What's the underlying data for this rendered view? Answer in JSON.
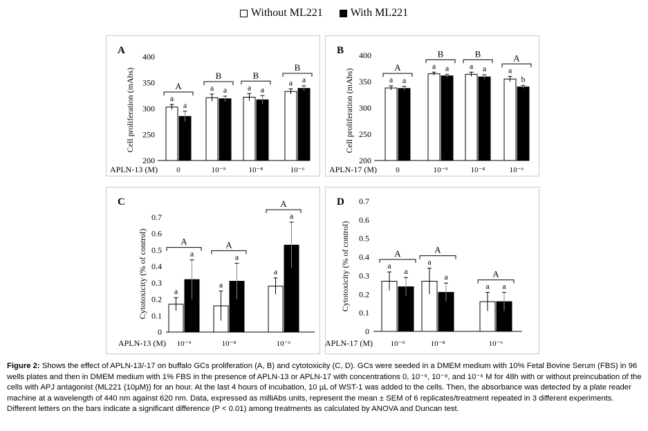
{
  "legend": {
    "without_label": "Without ML221",
    "with_label": "With ML221"
  },
  "colors": {
    "without": "#ffffff",
    "with": "#000000",
    "frame": "#c8c8c8"
  },
  "caption": {
    "label": "Figure 2:",
    "text": " Shows the effect of APLN-13/-17 on buffalo GCs proliferation (A, B) and cytotoxicity (C, D). GCs were seeded in a DMEM medium with 10% Fetal Bovine Serum (FBS) in 96 wells plates and then in DMEM medium with 1% FBS in the presence of APLN-13 or APLN-17 with concentrations 0, 10⁻⁹, 10⁻⁸, and 10⁻⁶ M for 48h with or without preincubation of the cells with APJ antagonist (ML221 (10µM)) for an hour. At the last 4 hours of incubation, 10 µL of WST-1 was added to the cells. Then, the absorbance was detected by a plate reader machine at a wavelength of 440 nm against 620 nm. Data, expressed as milliAbs units, represent the mean ± SEM of 6 replicates/treatment repeated in 3 different experiments. Different letters on the bars indicate a significant difference (P < 0.01) among treatments as calculated by ANOVA and Duncan test."
  },
  "chart_data": [
    {
      "panel": "A",
      "type": "bar",
      "ylabel": "Cell proliferation (mAbs)",
      "ylim": [
        200,
        400
      ],
      "yticks": [
        "400",
        "350",
        "300",
        "250",
        "200"
      ],
      "xlabel": "APLN-13 (M)",
      "categories": [
        "0",
        "10⁻⁹",
        "10⁻⁸",
        "10⁻⁶"
      ],
      "series": [
        {
          "values": [
            303,
            321,
            322,
            333
          ],
          "errors": [
            5,
            7,
            7,
            5
          ],
          "letters": [
            "a",
            "a",
            "a",
            "a"
          ]
        },
        {
          "values": [
            285,
            319,
            317,
            339
          ],
          "errors": [
            10,
            5,
            8,
            5
          ],
          "letters": [
            "a",
            "a",
            "a",
            "a"
          ]
        }
      ],
      "group_letters": [
        "A",
        "B",
        "B",
        "B"
      ]
    },
    {
      "panel": "B",
      "type": "bar",
      "ylabel": "Cell proliferation (mAbs)",
      "ylim": [
        200,
        400
      ],
      "yticks": [
        "400",
        "350",
        "300",
        "250",
        "200"
      ],
      "xlabel": "APLN-17 (M)",
      "categories": [
        "0",
        "10⁻⁹",
        "10⁻⁸",
        "10⁻⁶"
      ],
      "series": [
        {
          "values": [
            338,
            365,
            364,
            355
          ],
          "errors": [
            4,
            3,
            4,
            5
          ],
          "letters": [
            "a",
            "a",
            "a",
            "a"
          ]
        },
        {
          "values": [
            337,
            361,
            359,
            340
          ],
          "errors": [
            4,
            3,
            4,
            3
          ],
          "letters": [
            "a",
            "a",
            "a",
            "b"
          ]
        }
      ],
      "group_letters": [
        "A",
        "B",
        "B",
        "A"
      ]
    },
    {
      "panel": "C",
      "type": "bar",
      "ylabel": "Cytotoxicity (% of control)",
      "ylim": [
        0,
        0.7
      ],
      "yticks": [
        "0.7",
        "0.6",
        "0.5",
        "0.4",
        "0.3",
        "0.2",
        "0.1",
        "0"
      ],
      "xlabel": "APLN-13 (M)",
      "categories": [
        "10⁻⁹",
        "10⁻⁸",
        "10⁻⁶"
      ],
      "series": [
        {
          "values": [
            0.17,
            0.16,
            0.28
          ],
          "errors": [
            0.04,
            0.09,
            0.05
          ],
          "letters": [
            "a",
            "a",
            "a"
          ]
        },
        {
          "values": [
            0.32,
            0.31,
            0.53
          ],
          "errors": [
            0.12,
            0.11,
            0.14
          ],
          "letters": [
            "a",
            "a",
            "a"
          ]
        }
      ],
      "group_letters": [
        "A",
        "A",
        "A"
      ]
    },
    {
      "panel": "D",
      "type": "bar",
      "ylabel": "Cytotoxicity (% of control)",
      "ylim": [
        0,
        0.7
      ],
      "yticks": [
        "0.7",
        "0.6",
        "0.5",
        "0.4",
        "0.3",
        "0.2",
        "0.1",
        "0"
      ],
      "xlabel": "APLN-17 (M)",
      "categories": [
        "10⁻⁹",
        "10⁻⁸",
        "10⁻⁶"
      ],
      "series": [
        {
          "values": [
            0.27,
            0.27,
            0.16
          ],
          "errors": [
            0.05,
            0.07,
            0.05
          ],
          "letters": [
            "a",
            "a",
            "a"
          ]
        },
        {
          "values": [
            0.24,
            0.21,
            0.16
          ],
          "errors": [
            0.05,
            0.05,
            0.05
          ],
          "letters": [
            "a",
            "a",
            "a"
          ]
        }
      ],
      "group_letters": [
        "A",
        "A",
        "A"
      ]
    }
  ]
}
